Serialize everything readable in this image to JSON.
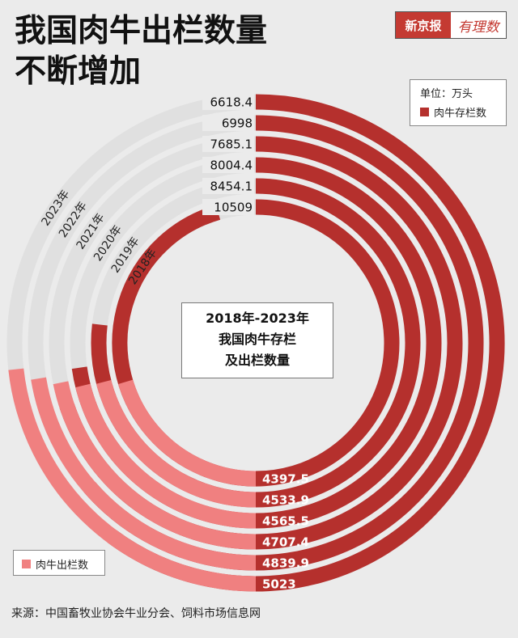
{
  "title_line1": "我国肉牛出栏数量",
  "title_line2": "不断增加",
  "brand": {
    "name": "新京报",
    "column": "有理数"
  },
  "legend": {
    "unit": "单位：万头",
    "stock_label": "肉牛存栏数",
    "slaughter_label": "肉牛出栏数"
  },
  "center_text": {
    "line1": "2018年-2023年",
    "line2": "我国肉牛存栏",
    "line3": "及出栏数量"
  },
  "source": "来源：中国畜牧业协会牛业分会、饲料市场信息网",
  "colors": {
    "stock": "#b5302d",
    "slaughter": "#f08080",
    "track": "#e0e0e0",
    "background": "#ebebeb"
  },
  "chart_data": {
    "type": "radial-bar",
    "title": "2018年-2023年 我国肉牛存栏及出栏数量",
    "unit": "万头",
    "categories": [
      "2023年",
      "2022年",
      "2021年",
      "2020年",
      "2019年",
      "2018年"
    ],
    "series": [
      {
        "name": "肉牛存栏数",
        "values": [
          6618.4,
          6998,
          7685.1,
          8004.4,
          8454.1,
          10509
        ]
      },
      {
        "name": "肉牛出栏数",
        "values": [
          5023,
          4839.9,
          4707.4,
          4565.5,
          4533.9,
          4397.5
        ]
      }
    ],
    "value_labels": {
      "stock": [
        "6618.4",
        "6998",
        "7685.1",
        "8004.4",
        "8454.1",
        "10509"
      ],
      "slaughter": [
        "5023",
        "4839.9",
        "4707.4",
        "4565.5",
        "4533.9",
        "4397.5"
      ]
    }
  }
}
